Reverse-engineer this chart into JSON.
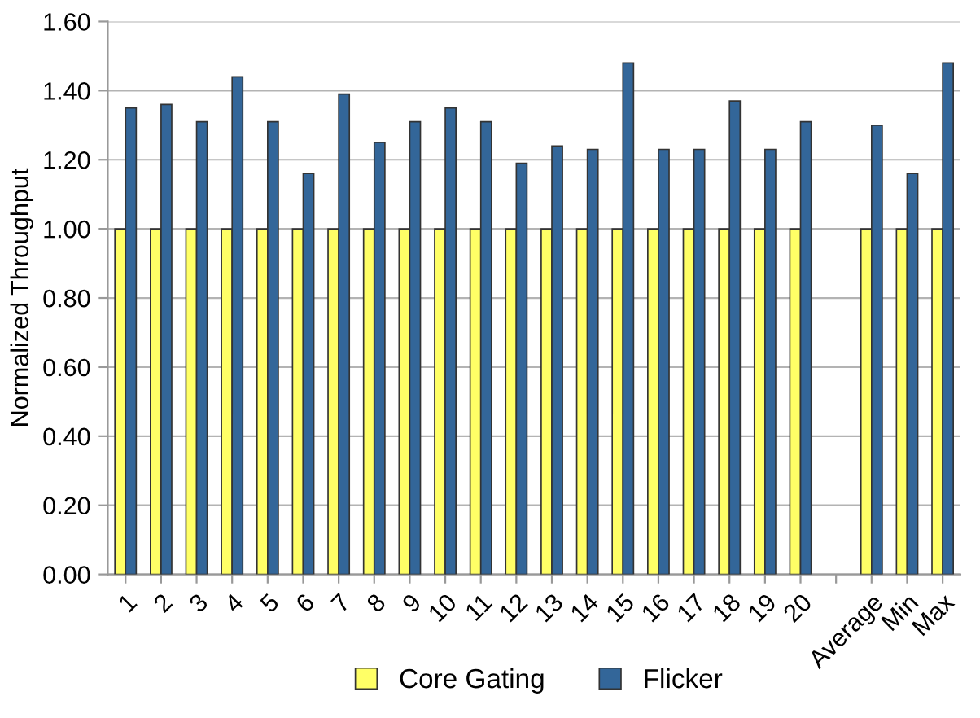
{
  "chart_data": {
    "type": "bar",
    "ylabel": "Normalized Throughput",
    "categories": [
      "1",
      "2",
      "3",
      "4",
      "5",
      "6",
      "7",
      "8",
      "9",
      "10",
      "11",
      "12",
      "13",
      "14",
      "15",
      "16",
      "17",
      "18",
      "19",
      "20",
      null,
      "Average",
      "Min",
      "Max"
    ],
    "series": [
      {
        "name": "Core Gating",
        "color": "#ffff66",
        "values": [
          1,
          1,
          1,
          1,
          1,
          1,
          1,
          1,
          1,
          1,
          1,
          1,
          1,
          1,
          1,
          1,
          1,
          1,
          1,
          1,
          null,
          1,
          1,
          1
        ]
      },
      {
        "name": "Flicker",
        "color": "#336699",
        "values": [
          1.35,
          1.36,
          1.31,
          1.44,
          1.31,
          1.16,
          1.39,
          1.25,
          1.31,
          1.35,
          1.31,
          1.19,
          1.24,
          1.23,
          1.48,
          1.23,
          1.23,
          1.37,
          1.23,
          1.31,
          null,
          1.3,
          1.16,
          1.48
        ]
      }
    ],
    "ylim": [
      0,
      1.6
    ],
    "yticks": [
      {
        "value": 0,
        "label": "0.00"
      },
      {
        "value": 0.2,
        "label": "0.20"
      },
      {
        "value": 0.4,
        "label": "0.40"
      },
      {
        "value": 0.6,
        "label": "0.60"
      },
      {
        "value": 0.8,
        "label": "0.80"
      },
      {
        "value": 1,
        "label": "1.00"
      },
      {
        "value": 1.2,
        "label": "1.20"
      },
      {
        "value": 1.4,
        "label": "1.40"
      },
      {
        "value": 1.6,
        "label": "1.60"
      }
    ],
    "grid": "y",
    "legend": "bottom"
  }
}
